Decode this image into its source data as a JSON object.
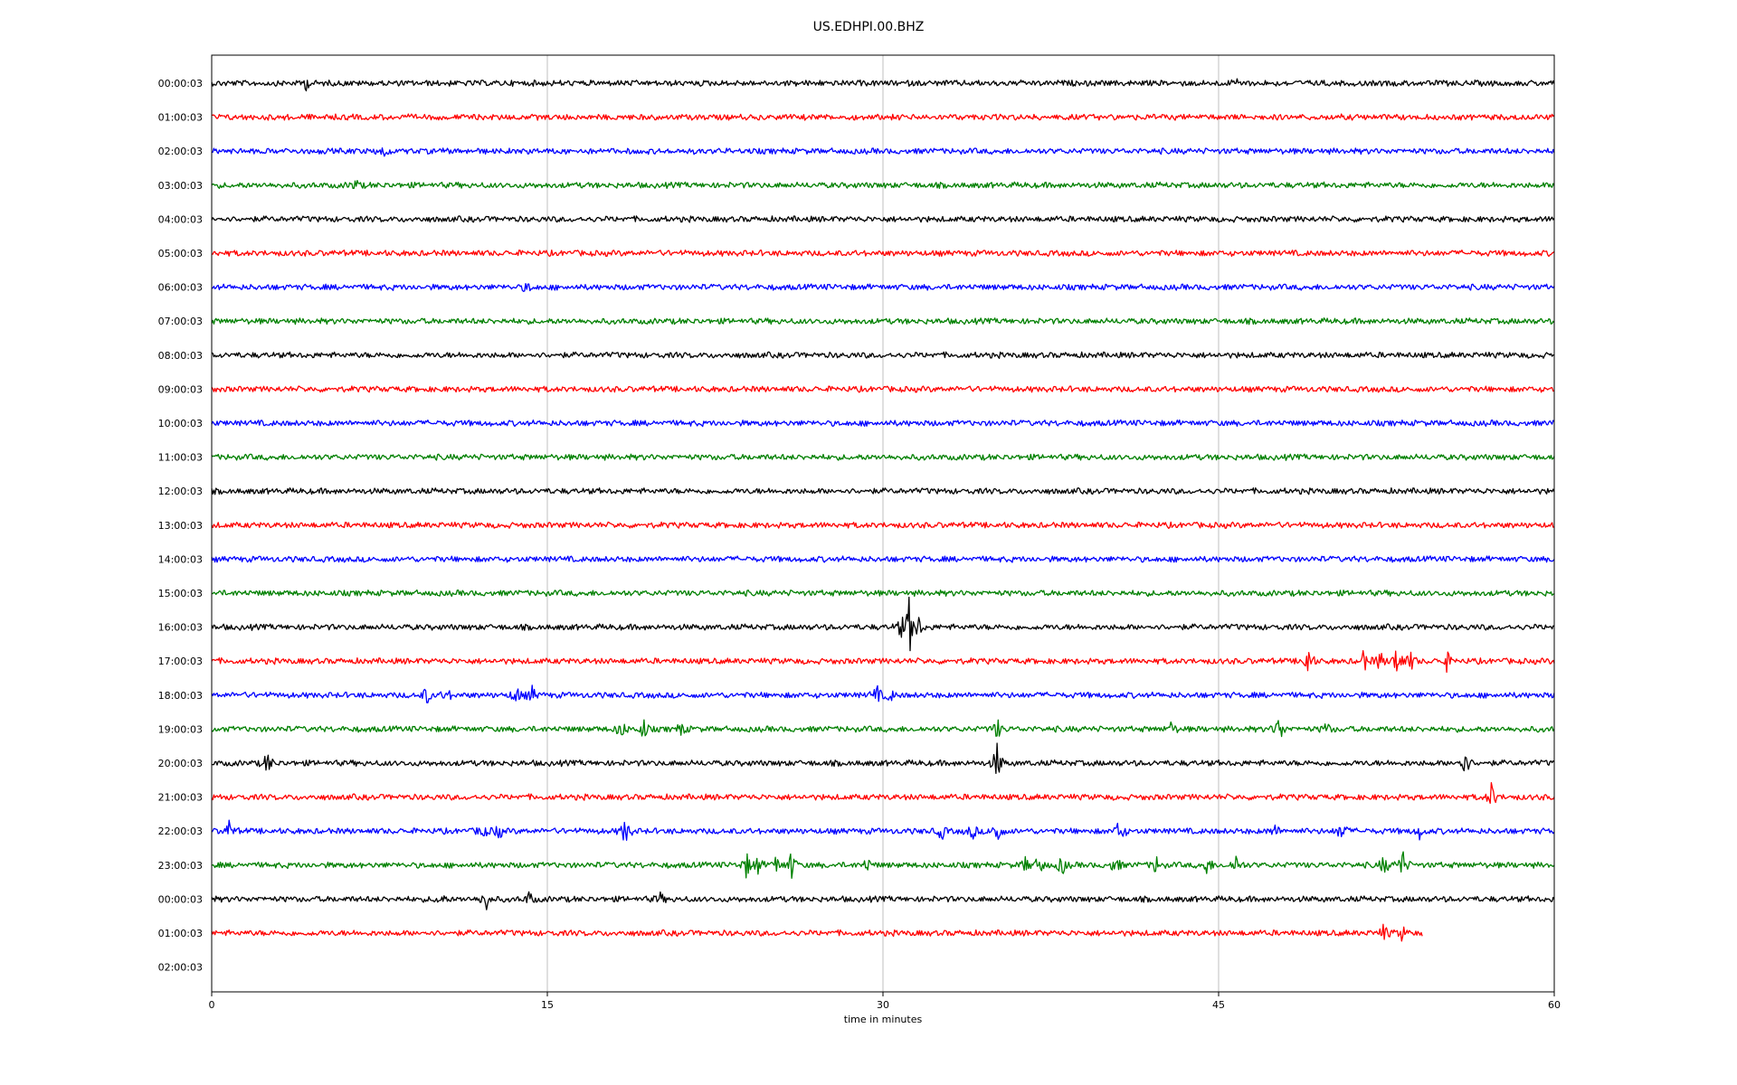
{
  "chart_data": {
    "type": "line",
    "title": "US.EDHPI.00.BHZ",
    "xlabel": "time in minutes",
    "ylabel": "",
    "xlim": [
      0,
      60
    ],
    "x_ticks": [
      0,
      15,
      30,
      45,
      60
    ],
    "grid_x": true,
    "grid_y": false,
    "rows": [
      {
        "label": "00:00:03",
        "color": "#000000",
        "end": 60,
        "events": [
          [
            4.2,
            0.35
          ],
          [
            45.8,
            0.25
          ]
        ]
      },
      {
        "label": "01:00:03",
        "color": "#ff0000",
        "end": 60,
        "events": []
      },
      {
        "label": "02:00:03",
        "color": "#0000ff",
        "end": 60,
        "events": [
          [
            7.7,
            0.35
          ]
        ]
      },
      {
        "label": "03:00:03",
        "color": "#008000",
        "end": 60,
        "events": [
          [
            6.4,
            0.35
          ]
        ]
      },
      {
        "label": "04:00:03",
        "color": "#000000",
        "end": 60,
        "events": []
      },
      {
        "label": "05:00:03",
        "color": "#ff0000",
        "end": 60,
        "events": []
      },
      {
        "label": "06:00:03",
        "color": "#0000ff",
        "end": 60,
        "events": [
          [
            14.1,
            0.3
          ]
        ]
      },
      {
        "label": "07:00:03",
        "color": "#008000",
        "end": 60,
        "events": []
      },
      {
        "label": "08:00:03",
        "color": "#000000",
        "end": 60,
        "events": []
      },
      {
        "label": "09:00:03",
        "color": "#ff0000",
        "end": 60,
        "events": []
      },
      {
        "label": "10:00:03",
        "color": "#0000ff",
        "end": 60,
        "events": []
      },
      {
        "label": "11:00:03",
        "color": "#008000",
        "end": 60,
        "events": []
      },
      {
        "label": "12:00:03",
        "color": "#000000",
        "end": 60,
        "events": []
      },
      {
        "label": "13:00:03",
        "color": "#ff0000",
        "end": 60,
        "events": []
      },
      {
        "label": "14:00:03",
        "color": "#0000ff",
        "end": 60,
        "events": []
      },
      {
        "label": "15:00:03",
        "color": "#008000",
        "end": 60,
        "events": []
      },
      {
        "label": "16:00:03",
        "color": "#000000",
        "end": 60,
        "events": [
          [
            30.8,
            0.6
          ],
          [
            31.2,
            1.9
          ],
          [
            31.6,
            0.5
          ]
        ]
      },
      {
        "label": "17:00:03",
        "color": "#ff0000",
        "end": 60,
        "events": [
          [
            49.0,
            1.1
          ],
          [
            51.5,
            0.6
          ],
          [
            52.2,
            0.6
          ],
          [
            53.0,
            1.3
          ],
          [
            53.6,
            0.5
          ],
          [
            55.2,
            0.5
          ]
        ]
      },
      {
        "label": "18:00:03",
        "color": "#0000ff",
        "end": 60,
        "events": [
          [
            9.6,
            0.5
          ],
          [
            10.5,
            0.4
          ],
          [
            13.6,
            0.6
          ],
          [
            14.3,
            0.5
          ],
          [
            29.7,
            0.6
          ],
          [
            30.3,
            0.4
          ]
        ]
      },
      {
        "label": "19:00:03",
        "color": "#008000",
        "end": 60,
        "events": [
          [
            18.3,
            0.6
          ],
          [
            19.3,
            0.6
          ],
          [
            21.0,
            0.4
          ],
          [
            35.1,
            0.6
          ],
          [
            42.9,
            0.4
          ],
          [
            47.7,
            0.9
          ],
          [
            49.8,
            0.4
          ]
        ]
      },
      {
        "label": "20:00:03",
        "color": "#000000",
        "end": 60,
        "events": [
          [
            2.5,
            0.7
          ],
          [
            35.1,
            1.2
          ],
          [
            56.0,
            1.0
          ]
        ]
      },
      {
        "label": "21:00:03",
        "color": "#ff0000",
        "end": 60,
        "events": [
          [
            57.2,
            0.8
          ]
        ]
      },
      {
        "label": "22:00:03",
        "color": "#0000ff",
        "end": 60,
        "events": [
          [
            0.8,
            0.6
          ],
          [
            12.1,
            0.5
          ],
          [
            12.8,
            0.5
          ],
          [
            18.5,
            0.9
          ],
          [
            32.6,
            0.5
          ],
          [
            34.0,
            0.5
          ],
          [
            35.1,
            0.9
          ],
          [
            40.6,
            0.9
          ],
          [
            47.5,
            0.4
          ],
          [
            50.5,
            0.7
          ],
          [
            54.0,
            0.4
          ]
        ]
      },
      {
        "label": "23:00:03",
        "color": "#008000",
        "end": 60,
        "events": [
          [
            23.9,
            0.7
          ],
          [
            24.4,
            0.5
          ],
          [
            25.2,
            0.5
          ],
          [
            25.9,
            0.8
          ],
          [
            29.3,
            0.4
          ],
          [
            36.4,
            0.5
          ],
          [
            37.0,
            0.6
          ],
          [
            38.0,
            0.6
          ],
          [
            40.4,
            0.6
          ],
          [
            42.2,
            0.5
          ],
          [
            44.5,
            0.6
          ],
          [
            45.8,
            0.6
          ],
          [
            52.4,
            0.6
          ],
          [
            53.2,
            1.0
          ]
        ]
      },
      {
        "label": "00:00:03",
        "color": "#000000",
        "end": 60,
        "events": [
          [
            10.2,
            0.4
          ],
          [
            12.2,
            0.9
          ],
          [
            14.2,
            0.4
          ],
          [
            20.0,
            0.4
          ]
        ]
      },
      {
        "label": "01:00:03",
        "color": "#ff0000",
        "end": 54.1,
        "events": [
          [
            52.4,
            0.5
          ],
          [
            53.2,
            0.4
          ]
        ]
      },
      {
        "label": "02:00:03",
        "color": "#0000ff",
        "end": 0,
        "events": []
      }
    ]
  }
}
